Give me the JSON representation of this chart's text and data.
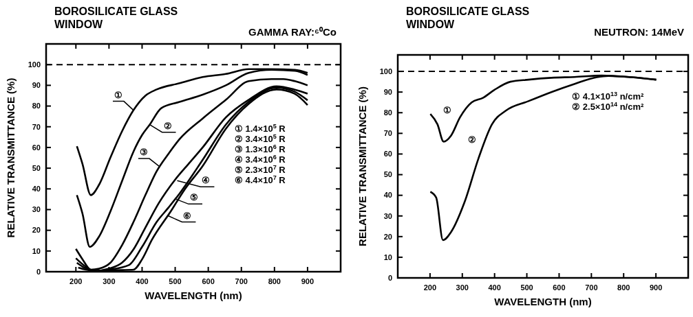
{
  "chart_data": [
    {
      "type": "line",
      "title": "BOROSILICATE GLASS\nWINDOW",
      "subtitle": "GAMMA RAY:⁶⁰Co",
      "xlabel": "WAVELENGTH (nm)",
      "ylabel": "RELATIVE TRANSMITTANCE (%)",
      "xlim": [
        110,
        1000
      ],
      "ylim": [
        0,
        110
      ],
      "xticks": [
        200,
        300,
        400,
        500,
        600,
        700,
        800,
        900
      ],
      "yticks": [
        0,
        10,
        20,
        30,
        40,
        50,
        60,
        70,
        80,
        90,
        100
      ],
      "grid": false,
      "series": [
        {
          "color": "#000000",
          "x": [
            203,
            220,
            245,
            270,
            304,
            340,
            374,
            410,
            444,
            513,
            583,
            653,
            722,
            792,
            862,
            900
          ],
          "values": [
            60.6,
            52,
            37,
            42,
            55,
            68,
            78,
            85,
            88,
            91,
            94,
            95.5,
            97.8,
            97.8,
            97.5,
            96
          ]
        },
        {
          "color": "#000000",
          "x": [
            203,
            220,
            242,
            270,
            304,
            340,
            374,
            400,
            423,
            458,
            513,
            583,
            653,
            722,
            792,
            862,
            900
          ],
          "values": [
            37,
            28,
            12,
            17,
            29,
            44,
            58,
            66,
            71,
            79,
            82,
            85.5,
            90,
            96,
            97.5,
            97,
            95
          ]
        },
        {
          "color": "#000000",
          "x": [
            200,
            220,
            245,
            270,
            304,
            340,
            374,
            410,
            444,
            480,
            513,
            583,
            653,
            722,
            792,
            827,
            862,
            900
          ],
          "values": [
            11,
            6,
            1,
            1.5,
            4.3,
            13,
            24,
            37,
            48.5,
            57,
            64,
            74,
            83,
            92,
            93,
            93,
            92,
            90
          ]
        },
        {
          "color": "#000000",
          "x": [
            200,
            225,
            256,
            300,
            339,
            375,
            409,
            450,
            500,
            540,
            583,
            653,
            722,
            806,
            860,
            900
          ],
          "values": [
            6.5,
            3,
            0.4,
            1.5,
            4.3,
            11,
            21,
            33,
            44.5,
            52,
            60,
            74.5,
            83,
            89.5,
            88,
            86
          ]
        },
        {
          "color": "#000000",
          "x": [
            203,
            225,
            256,
            300,
            360,
            400,
            444,
            480,
            513,
            583,
            653,
            722,
            806,
            860,
            900
          ],
          "values": [
            4.3,
            2,
            0.4,
            1,
            3.2,
            12,
            24,
            31,
            37.7,
            54,
            71,
            82,
            88.9,
            87,
            82.8
          ]
        },
        {
          "color": "#000000",
          "x": [
            207,
            230,
            256,
            300,
            340,
            374,
            400,
            430,
            486,
            530,
            583,
            653,
            722,
            806,
            860,
            900
          ],
          "values": [
            2,
            1,
            0.4,
            0.6,
            0.8,
            1,
            6,
            15.5,
            29,
            40,
            51,
            69,
            81,
            88,
            86,
            80.5
          ]
        }
      ],
      "ref_lines": [
        {
          "axis": "y",
          "value": 100,
          "line_style": "dashed"
        }
      ],
      "annotations": [
        "① 1.4×10$^{5}$ R",
        "② 3.4×10$^{5}$ R",
        "③ 1.3×10$^{6}$ R",
        "④ 3.4×10$^{6}$ R",
        "⑤ 2.3×10$^{7}$ R",
        "⑥ 4.4×10$^{7}$ R",
        {
          "text": "①",
          "x": 374,
          "y": 78
        },
        {
          "text": "②",
          "x": 423,
          "y": 71
        },
        {
          "text": "③",
          "x": 451,
          "y": 51
        },
        {
          "text": "④",
          "x": 506,
          "y": 44
        },
        {
          "text": "⑤",
          "x": 503,
          "y": 35
        },
        {
          "text": "⑥",
          "x": 479,
          "y": 27
        }
      ]
    },
    {
      "type": "line",
      "title": "BOROSILICATE GLASS\nWINDOW",
      "subtitle": "NEUTRON: 14MeV",
      "xlabel": "WAVELENGTH (nm)",
      "ylabel": "RELATIVE TRANSMITTANCE (%)",
      "xlim": [
        100,
        1000
      ],
      "ylim": [
        0,
        108
      ],
      "xticks": [
        200,
        300,
        400,
        500,
        600,
        700,
        800,
        900
      ],
      "yticks": [
        0,
        10,
        20,
        30,
        40,
        50,
        60,
        70,
        80,
        90,
        100
      ],
      "grid": false,
      "series": [
        {
          "color": "#000000",
          "x": [
            201,
            223,
            242,
            265,
            293,
            329,
            364,
            399,
            449,
            505,
            576,
            647,
            732,
            824,
            901
          ],
          "values": [
            79.4,
            74.4,
            66,
            68.9,
            77.8,
            85,
            87.2,
            91,
            95,
            96,
            96.9,
            97.3,
            98,
            97.2,
            96
          ]
        },
        {
          "color": "#000000",
          "x": [
            201,
            219,
            240,
            265,
            307,
            350,
            392,
            435,
            505,
            576,
            647,
            717,
            753,
            824,
            901
          ],
          "values": [
            41.7,
            38.9,
            18.3,
            22.2,
            36.7,
            57.8,
            74.4,
            81,
            85.6,
            90,
            93.9,
            97.2,
            97.8,
            97.2,
            96
          ]
        }
      ],
      "ref_lines": [
        {
          "axis": "y",
          "value": 100,
          "line_style": "dashed"
        }
      ],
      "annotations": [
        "① 4.1×10$^{13}$ n/cm²",
        "② 2.5×10$^{14}$ n/cm²",
        {
          "text": "①",
          "x": 293,
          "y": 77.8
        },
        {
          "text": "②",
          "x": 355,
          "y": 60
        }
      ]
    }
  ]
}
